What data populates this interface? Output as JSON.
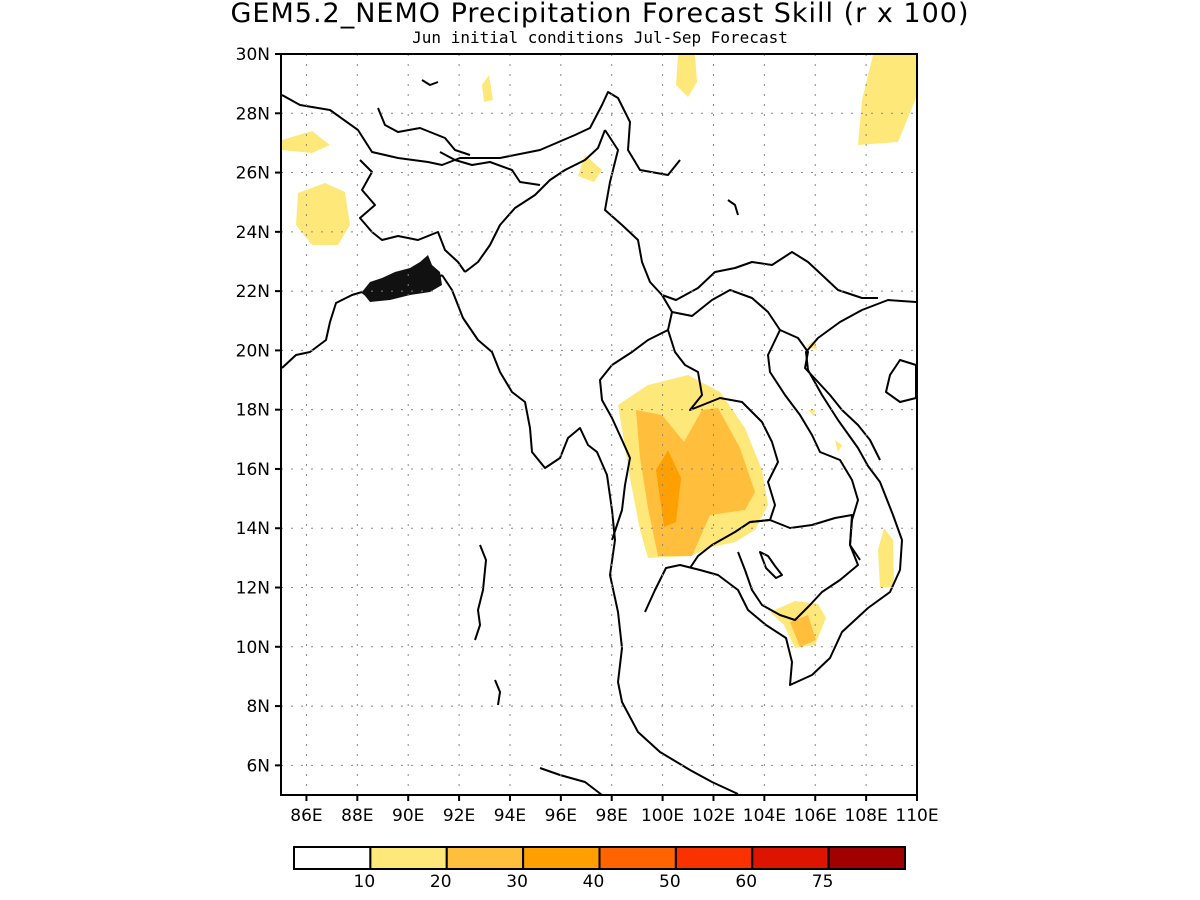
{
  "title": "GEM5.2_NEMO Precipitation Forecast Skill (r x 100)",
  "subtitle": "Jun initial conditions  Jul-Sep Forecast",
  "map": {
    "lon_range": [
      85,
      110
    ],
    "lat_range": [
      5,
      30
    ],
    "gridlines": "dotted",
    "lat_ticks": [
      {
        "id": "30",
        "label": "30N"
      },
      {
        "id": "28",
        "label": "28N"
      },
      {
        "id": "26",
        "label": "26N"
      },
      {
        "id": "24",
        "label": "24N"
      },
      {
        "id": "22",
        "label": "22N"
      },
      {
        "id": "20",
        "label": "20N"
      },
      {
        "id": "18",
        "label": "18N"
      },
      {
        "id": "16",
        "label": "16N"
      },
      {
        "id": "14",
        "label": "14N"
      },
      {
        "id": "12",
        "label": "12N"
      },
      {
        "id": "10",
        "label": "10N"
      },
      {
        "id": "8",
        "label": "8N"
      },
      {
        "id": "6",
        "label": "6N"
      }
    ],
    "lon_ticks": [
      {
        "id": "86",
        "label": "86E"
      },
      {
        "id": "88",
        "label": "88E"
      },
      {
        "id": "90",
        "label": "90E"
      },
      {
        "id": "92",
        "label": "92E"
      },
      {
        "id": "94",
        "label": "94E"
      },
      {
        "id": "96",
        "label": "96E"
      },
      {
        "id": "98",
        "label": "98E"
      },
      {
        "id": "100",
        "label": "100E"
      },
      {
        "id": "102",
        "label": "102E"
      },
      {
        "id": "104",
        "label": "104E"
      },
      {
        "id": "106",
        "label": "106E"
      },
      {
        "id": "108",
        "label": "108E"
      },
      {
        "id": "110",
        "label": "110E"
      }
    ],
    "contour_shading": [
      {
        "level": "10-20",
        "color": "#ffe87a"
      },
      {
        "level": "20-30",
        "color": "#ffbe3c"
      },
      {
        "level": "30-40",
        "color": "#ffa000"
      }
    ]
  },
  "colorbar": {
    "colors": [
      "#ffffff",
      "#ffe87a",
      "#ffbe3c",
      "#ffa000",
      "#ff6400",
      "#fa3200",
      "#dc1400",
      "#a00000"
    ],
    "labels": [
      "10",
      "20",
      "30",
      "40",
      "50",
      "60",
      "75"
    ]
  }
}
